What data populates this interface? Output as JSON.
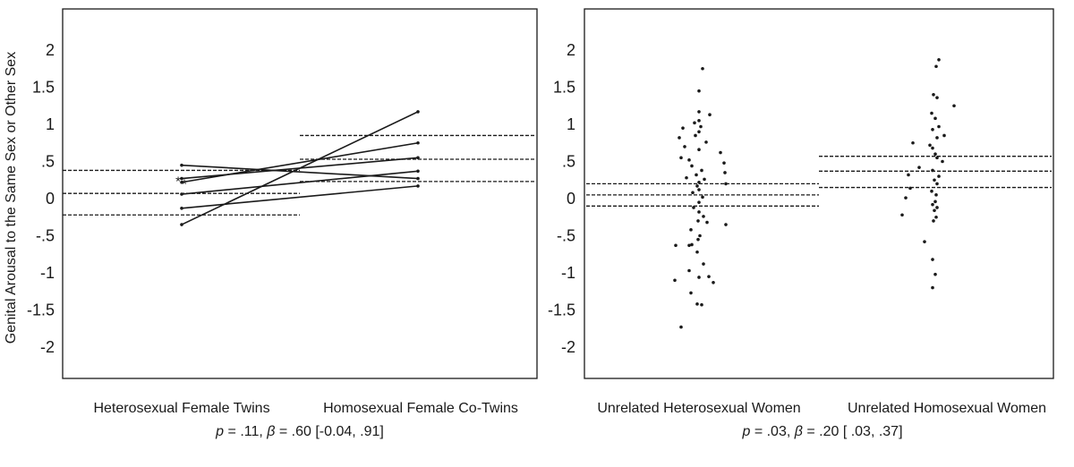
{
  "y_axis_label": "Genital Arousal to the Same Sex or Other Sex",
  "chart_data": [
    {
      "type": "line",
      "panel": "twins",
      "title": "",
      "ylabel": "Genital Arousal to the Same Sex or Other Sex",
      "ylim": [
        -2.5,
        2.5
      ],
      "yticks": [
        "2",
        "1.5",
        "1",
        ".5",
        "0",
        "-.5",
        "-1",
        "-1.5",
        "-2"
      ],
      "ytick_values": [
        2,
        1.5,
        1,
        0.5,
        0,
        -0.5,
        -1,
        -1.5,
        -2
      ],
      "categories": [
        "Heterosexual Female Twins",
        "Homosexual Female Co-Twins"
      ],
      "stat": {
        "p": "p",
        "p_text": " = .11, ",
        "beta": "β",
        "beta_text": " = .60 [-0.04, .91]"
      },
      "pairs": [
        {
          "from": 0.45,
          "to": 0.27
        },
        {
          "from": 0.27,
          "to": 0.55
        },
        {
          "from": 0.22,
          "to": 0.75
        },
        {
          "from": 0.06,
          "to": 0.37
        },
        {
          "from": -0.13,
          "to": 0.17
        },
        {
          "from": -0.35,
          "to": 1.17
        }
      ],
      "star_markers": [
        0.26,
        0.22
      ],
      "reference_lines": {
        "group0": [
          0.38,
          0.07,
          -0.22
        ],
        "group1": [
          0.85,
          0.53,
          0.23
        ]
      }
    },
    {
      "type": "scatter",
      "panel": "unrelated",
      "title": "",
      "ylabel": "",
      "ylim": [
        -2.5,
        2.5
      ],
      "yticks": [
        "2",
        "1.5",
        "1",
        ".5",
        "0",
        "-.5",
        "-1",
        "-1.5",
        "-2"
      ],
      "ytick_values": [
        2,
        1.5,
        1,
        0.5,
        0,
        -0.5,
        -1,
        -1.5,
        -2
      ],
      "categories": [
        "Unrelated Heterosexual Women",
        "Unrelated Homosexual Women"
      ],
      "stat": {
        "p": "p",
        "p_text": " = .03, ",
        "beta": "β",
        "beta_text": " = .20 [ .03, .37]"
      },
      "reference_lines": {
        "group0": [
          0.2,
          0.05,
          -0.1
        ],
        "group1": [
          0.57,
          0.37,
          0.15
        ]
      },
      "series": [
        {
          "name": "Unrelated Heterosexual Women",
          "points": [
            {
              "dx": 4,
              "y": 1.75
            },
            {
              "dx": 0,
              "y": 1.45
            },
            {
              "dx": 0,
              "y": 1.17
            },
            {
              "dx": 12,
              "y": 1.13
            },
            {
              "dx": 0,
              "y": 1.05
            },
            {
              "dx": -5,
              "y": 1.02
            },
            {
              "dx": 2,
              "y": 0.97
            },
            {
              "dx": -18,
              "y": 0.95
            },
            {
              "dx": 0,
              "y": 0.9
            },
            {
              "dx": -4,
              "y": 0.85
            },
            {
              "dx": -22,
              "y": 0.82
            },
            {
              "dx": 8,
              "y": 0.76
            },
            {
              "dx": -16,
              "y": 0.7
            },
            {
              "dx": 0,
              "y": 0.66
            },
            {
              "dx": 24,
              "y": 0.62
            },
            {
              "dx": -20,
              "y": 0.55
            },
            {
              "dx": -11,
              "y": 0.52
            },
            {
              "dx": 28,
              "y": 0.48
            },
            {
              "dx": -8,
              "y": 0.44
            },
            {
              "dx": 3,
              "y": 0.38
            },
            {
              "dx": 29,
              "y": 0.35
            },
            {
              "dx": -3,
              "y": 0.32
            },
            {
              "dx": -14,
              "y": 0.28
            },
            {
              "dx": 6,
              "y": 0.26
            },
            {
              "dx": 0,
              "y": 0.22
            },
            {
              "dx": 30,
              "y": 0.2
            },
            {
              "dx": -2,
              "y": 0.17
            },
            {
              "dx": 0,
              "y": 0.12
            },
            {
              "dx": -7,
              "y": 0.08
            },
            {
              "dx": 4,
              "y": 0.02
            },
            {
              "dx": 0,
              "y": -0.05
            },
            {
              "dx": -6,
              "y": -0.12
            },
            {
              "dx": 0,
              "y": -0.18
            },
            {
              "dx": 5,
              "y": -0.24
            },
            {
              "dx": -1,
              "y": -0.3
            },
            {
              "dx": 9,
              "y": -0.32
            },
            {
              "dx": 30,
              "y": -0.35
            },
            {
              "dx": -9,
              "y": -0.42
            },
            {
              "dx": 1,
              "y": -0.5
            },
            {
              "dx": -1,
              "y": -0.55
            },
            {
              "dx": -8,
              "y": -0.62
            },
            {
              "dx": -11,
              "y": -0.63
            },
            {
              "dx": -26,
              "y": -0.63
            },
            {
              "dx": -2,
              "y": -0.72
            },
            {
              "dx": 5,
              "y": -0.88
            },
            {
              "dx": -11,
              "y": -0.97
            },
            {
              "dx": 11,
              "y": -1.05
            },
            {
              "dx": 0,
              "y": -1.06
            },
            {
              "dx": -27,
              "y": -1.1
            },
            {
              "dx": 16,
              "y": -1.13
            },
            {
              "dx": -9,
              "y": -1.27
            },
            {
              "dx": -2,
              "y": -1.42
            },
            {
              "dx": 3,
              "y": -1.43
            },
            {
              "dx": -20,
              "y": -1.73
            }
          ]
        },
        {
          "name": "Unrelated Homosexual Women",
          "points": [
            {
              "dx": 4,
              "y": 1.87
            },
            {
              "dx": 1,
              "y": 1.78
            },
            {
              "dx": -2,
              "y": 1.4
            },
            {
              "dx": 2,
              "y": 1.36
            },
            {
              "dx": 21,
              "y": 1.25
            },
            {
              "dx": -4,
              "y": 1.15
            },
            {
              "dx": 0,
              "y": 1.08
            },
            {
              "dx": 4,
              "y": 0.97
            },
            {
              "dx": -3,
              "y": 0.93
            },
            {
              "dx": 10,
              "y": 0.85
            },
            {
              "dx": 2,
              "y": 0.82
            },
            {
              "dx": -25,
              "y": 0.75
            },
            {
              "dx": -6,
              "y": 0.72
            },
            {
              "dx": -3,
              "y": 0.68
            },
            {
              "dx": 0,
              "y": 0.6
            },
            {
              "dx": 2,
              "y": 0.55
            },
            {
              "dx": 8,
              "y": 0.5
            },
            {
              "dx": -18,
              "y": 0.42
            },
            {
              "dx": -3,
              "y": 0.38
            },
            {
              "dx": -30,
              "y": 0.32
            },
            {
              "dx": 4,
              "y": 0.3
            },
            {
              "dx": -1,
              "y": 0.25
            },
            {
              "dx": 2,
              "y": 0.2
            },
            {
              "dx": -28,
              "y": 0.14
            },
            {
              "dx": -4,
              "y": 0.1
            },
            {
              "dx": 1,
              "y": 0.05
            },
            {
              "dx": -33,
              "y": 0.01
            },
            {
              "dx": 0,
              "y": -0.04
            },
            {
              "dx": -3,
              "y": -0.08
            },
            {
              "dx": 2,
              "y": -0.12
            },
            {
              "dx": -1,
              "y": -0.16
            },
            {
              "dx": -37,
              "y": -0.22
            },
            {
              "dx": 1,
              "y": -0.25
            },
            {
              "dx": -2,
              "y": -0.3
            },
            {
              "dx": -12,
              "y": -0.58
            },
            {
              "dx": -3,
              "y": -0.82
            },
            {
              "dx": 0,
              "y": -1.02
            },
            {
              "dx": -3,
              "y": -1.2
            }
          ]
        }
      ]
    }
  ]
}
